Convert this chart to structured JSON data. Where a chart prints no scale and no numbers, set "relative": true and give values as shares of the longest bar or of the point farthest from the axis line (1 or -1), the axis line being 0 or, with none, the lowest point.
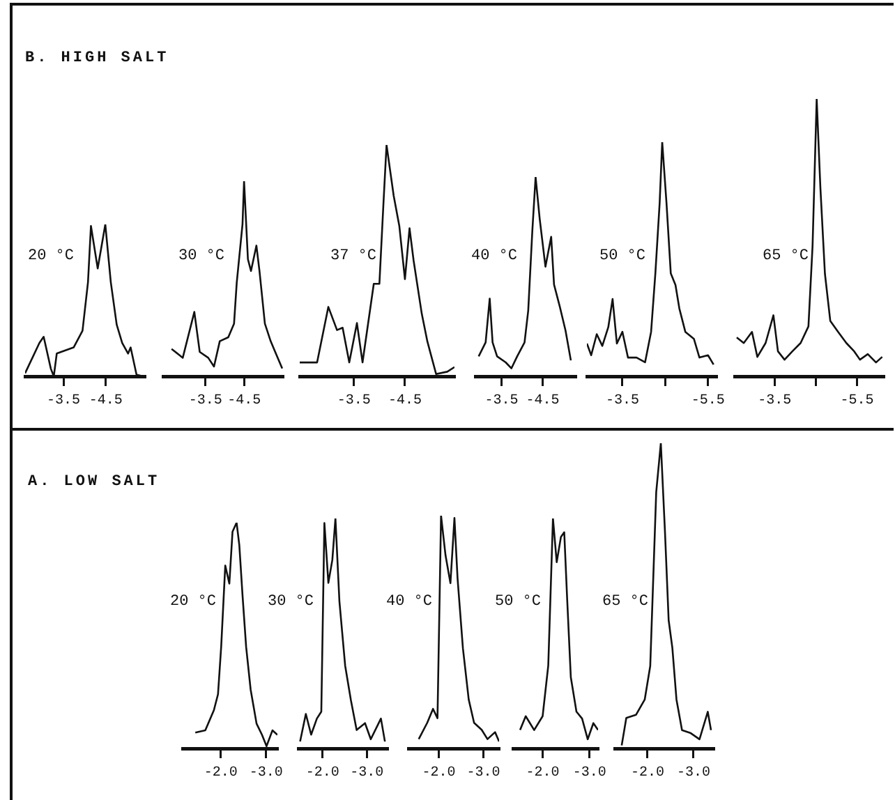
{
  "chart_data": [
    {
      "type": "line",
      "subtitle": "B. HIGH SALT",
      "title": "20 °C",
      "relative": true,
      "color": "#111111",
      "marker": "none",
      "xlim": [
        -2.59,
        -5.43
      ],
      "xticks": [
        -3.5,
        -4.5
      ],
      "x": [
        -2.59,
        -2.93,
        -3.03,
        -3.2,
        -3.27,
        -3.34,
        -3.74,
        -3.95,
        -4.08,
        -4.15,
        -4.31,
        -4.49,
        -4.62,
        -4.76,
        -4.89,
        -5.03,
        -5.09,
        -5.23,
        -5.39
      ],
      "values": [
        0.02,
        0.22,
        0.26,
        0.05,
        0,
        0.15,
        0.19,
        0.3,
        0.62,
        0.99,
        0.71,
        1.0,
        0.62,
        0.34,
        0.22,
        0.15,
        0.19,
        0.01,
        0
      ]
    },
    {
      "type": "line",
      "title": "30 °C",
      "relative": true,
      "color": "#111111",
      "marker": "none",
      "xlim": [
        -2.4,
        -5.51
      ],
      "xticks": [
        -3.5,
        -4.5
      ],
      "x": [
        -2.62,
        -2.91,
        -3.21,
        -3.35,
        -3.57,
        -3.72,
        -3.87,
        -4.09,
        -4.24,
        -4.31,
        -4.46,
        -4.5,
        -4.6,
        -4.68,
        -4.82,
        -4.9,
        -5.04,
        -5.19,
        -5.34,
        -5.49
      ],
      "values": [
        0.14,
        0.095,
        0.33,
        0.125,
        0.095,
        0.05,
        0.18,
        0.2,
        0.27,
        0.48,
        0.78,
        1.0,
        0.6,
        0.54,
        0.67,
        0.54,
        0.27,
        0.18,
        0.11,
        0.04
      ]
    },
    {
      "type": "line",
      "title": "37 °C",
      "relative": true,
      "color": "#111111",
      "marker": "none",
      "xlim": [
        -2.44,
        -5.47
      ],
      "xticks": [
        -3.5,
        -4.5
      ],
      "x": [
        -2.44,
        -2.78,
        -3.0,
        -3.17,
        -3.28,
        -3.41,
        -3.56,
        -3.67,
        -3.89,
        -4.0,
        -4.08,
        -4.14,
        -4.28,
        -4.39,
        -4.5,
        -4.59,
        -4.67,
        -4.83,
        -4.94,
        -5.11,
        -5.33,
        -5.47
      ],
      "values": [
        0.06,
        0.06,
        0.3,
        0.2,
        0.21,
        0.06,
        0.23,
        0.06,
        0.4,
        0.4,
        0.75,
        1.0,
        0.78,
        0.65,
        0.42,
        0.64,
        0.5,
        0.27,
        0.15,
        0.01,
        0.02,
        0.04
      ]
    },
    {
      "type": "line",
      "title": "40 °C",
      "relative": true,
      "color": "#111111",
      "marker": "none",
      "xlim": [
        -2.86,
        -5.31
      ],
      "xticks": [
        -3.5,
        -4.5
      ],
      "x": [
        -2.94,
        -3.11,
        -3.21,
        -3.28,
        -3.39,
        -3.6,
        -3.74,
        -3.88,
        -4.06,
        -4.15,
        -4.25,
        -4.33,
        -4.43,
        -4.57,
        -4.71,
        -4.78,
        -4.92,
        -5.06,
        -5.19
      ],
      "values": [
        0.1,
        0.17,
        0.39,
        0.17,
        0.1,
        0.07,
        0.04,
        0.1,
        0.17,
        0.33,
        0.73,
        1.0,
        0.79,
        0.55,
        0.7,
        0.46,
        0.35,
        0.23,
        0.08
      ]
    },
    {
      "type": "line",
      "title": "50 °C",
      "relative": true,
      "color": "#111111",
      "marker": "none",
      "xlim": [
        -2.67,
        -5.7
      ],
      "xticks": [
        -3.5,
        {
          "value": -4.5,
          "label": null
        },
        -5.5
      ],
      "x": [
        -2.67,
        -2.77,
        -2.9,
        -3.03,
        -3.17,
        -3.27,
        -3.37,
        -3.5,
        -3.63,
        -3.83,
        -4.03,
        -4.17,
        -4.27,
        -4.37,
        -4.43,
        -4.53,
        -4.63,
        -4.74,
        -4.83,
        -4.97,
        -5.17,
        -5.3,
        -5.5,
        -5.63
      ],
      "values": [
        0.14,
        0.09,
        0.18,
        0.13,
        0.21,
        0.33,
        0.14,
        0.19,
        0.08,
        0.08,
        0.06,
        0.19,
        0.44,
        0.74,
        1.0,
        0.74,
        0.44,
        0.39,
        0.29,
        0.19,
        0.16,
        0.08,
        0.09,
        0.05
      ]
    },
    {
      "type": "line",
      "title": "65 °C",
      "relative": true,
      "color": "#111111",
      "marker": "none",
      "xlim": [
        -2.53,
        -6.15
      ],
      "xticks": [
        -3.5,
        {
          "value": -4.5,
          "label": null
        },
        -5.5
      ],
      "x": [
        -2.58,
        -2.75,
        -2.95,
        -3.08,
        -3.28,
        -3.47,
        -3.58,
        -3.74,
        -3.93,
        -4.13,
        -4.32,
        -4.42,
        -4.52,
        -4.61,
        -4.72,
        -4.85,
        -5.04,
        -5.24,
        -5.43,
        -5.57,
        -5.76,
        -5.96,
        -6.11
      ],
      "values": [
        0.14,
        0.12,
        0.16,
        0.07,
        0.12,
        0.22,
        0.09,
        0.06,
        0.09,
        0.12,
        0.18,
        0.47,
        1.0,
        0.68,
        0.37,
        0.2,
        0.16,
        0.12,
        0.09,
        0.06,
        0.08,
        0.05,
        0.07
      ]
    },
    {
      "type": "line",
      "subtitle": "A. LOW SALT",
      "title": "20 °C",
      "relative": true,
      "color": "#111111",
      "marker": "none",
      "xlim": [
        -1.16,
        -3.25
      ],
      "xticks": [
        {
          "value": -2,
          "label": "-2.0"
        },
        {
          "value": -3,
          "label": "-3.0"
        }
      ],
      "x": [
        -1.44,
        -1.66,
        -1.85,
        -1.94,
        -2.01,
        -2.1,
        -2.19,
        -2.26,
        -2.35,
        -2.41,
        -2.48,
        -2.56,
        -2.66,
        -2.79,
        -2.91,
        -3.01,
        -3.14,
        -3.25
      ],
      "values": [
        0.07,
        0.08,
        0.17,
        0.24,
        0.45,
        0.81,
        0.73,
        0.96,
        1.0,
        0.9,
        0.68,
        0.45,
        0.26,
        0.11,
        0.06,
        0.01,
        0.08,
        0.06
      ]
    },
    {
      "type": "line",
      "title": "30 °C",
      "relative": true,
      "color": "#111111",
      "marker": "none",
      "xlim": [
        -1.45,
        -3.47
      ],
      "xticks": [
        {
          "value": -2,
          "label": "-2.0"
        },
        {
          "value": -3,
          "label": "-3.0"
        }
      ],
      "x": [
        -1.49,
        -1.62,
        -1.74,
        -1.87,
        -1.97,
        -2.04,
        -2.13,
        -2.22,
        -2.29,
        -2.38,
        -2.51,
        -2.64,
        -2.77,
        -2.96,
        -3.09,
        -3.32,
        -3.41
      ],
      "values": [
        0.03,
        0.15,
        0.06,
        0.13,
        0.16,
        0.98,
        0.72,
        0.82,
        1.0,
        0.64,
        0.36,
        0.21,
        0.08,
        0.11,
        0.04,
        0.13,
        0.03
      ]
    },
    {
      "type": "line",
      "title": "40 °C",
      "relative": true,
      "color": "#111111",
      "marker": "none",
      "xlim": [
        -1.32,
        -3.35
      ],
      "xticks": [
        {
          "value": -2,
          "label": "-2.0"
        },
        {
          "value": -3,
          "label": "-3.0"
        }
      ],
      "x": [
        -1.55,
        -1.74,
        -1.87,
        -1.97,
        -2.05,
        -2.15,
        -2.26,
        -2.35,
        -2.42,
        -2.54,
        -2.67,
        -2.79,
        -2.96,
        -3.09,
        -3.26,
        -3.35
      ],
      "values": [
        0.04,
        0.11,
        0.17,
        0.13,
        1.0,
        0.83,
        0.71,
        0.99,
        0.73,
        0.43,
        0.21,
        0.11,
        0.08,
        0.04,
        0.07,
        0.03
      ]
    },
    {
      "type": "line",
      "title": "50 °C",
      "relative": true,
      "color": "#111111",
      "marker": "none",
      "xlim": [
        -1.37,
        -3.18
      ],
      "xticks": [
        {
          "value": -2,
          "label": "-2.0"
        },
        {
          "value": -3,
          "label": "-3.0"
        }
      ],
      "x": [
        -1.52,
        -1.64,
        -1.82,
        -2.0,
        -2.12,
        -2.22,
        -2.3,
        -2.39,
        -2.46,
        -2.52,
        -2.6,
        -2.72,
        -2.84,
        -2.96,
        -3.08,
        -3.18
      ],
      "values": [
        0.08,
        0.14,
        0.08,
        0.14,
        0.36,
        1.0,
        0.81,
        0.92,
        0.94,
        0.66,
        0.31,
        0.16,
        0.13,
        0.04,
        0.11,
        0.08
      ]
    },
    {
      "type": "line",
      "title": "65 °C",
      "relative": true,
      "color": "#111111",
      "marker": "none",
      "xlim": [
        -1.29,
        -3.44
      ],
      "xticks": [
        {
          "value": -2,
          "label": "-2.0"
        },
        {
          "value": -3,
          "label": "-3.0"
        }
      ],
      "x": [
        -1.44,
        -1.54,
        -1.75,
        -1.94,
        -2.06,
        -2.19,
        -2.29,
        -2.38,
        -2.46,
        -2.54,
        -2.63,
        -2.75,
        -2.94,
        -3.13,
        -3.31,
        -3.38
      ],
      "values": [
        0.01,
        0.1,
        0.11,
        0.16,
        0.27,
        0.84,
        1.0,
        0.71,
        0.42,
        0.33,
        0.16,
        0.06,
        0.05,
        0.03,
        0.12,
        0.06
      ]
    }
  ]
}
